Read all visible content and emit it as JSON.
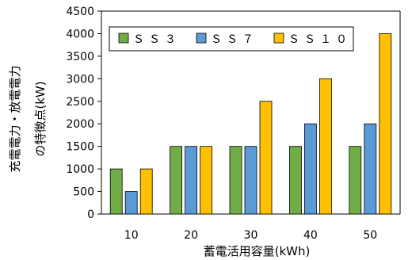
{
  "chart_data": {
    "type": "bar",
    "categories": [
      "10",
      "20",
      "30",
      "40",
      "50"
    ],
    "series": [
      {
        "name": "ＳＳ３",
        "values": [
          1000,
          1500,
          1500,
          1500,
          1500
        ],
        "color": "#70ad47"
      },
      {
        "name": "ＳＳ７",
        "values": [
          500,
          1500,
          1500,
          2000,
          2000
        ],
        "color": "#5b9bd5"
      },
      {
        "name": "ＳＳ１０",
        "values": [
          1000,
          1500,
          2500,
          3000,
          4000
        ],
        "color": "#ffc000"
      }
    ],
    "xlabel": "蓄電活用容量(kWh)",
    "ylabel_line1": "充電電力・放電電力",
    "ylabel_line2": "の特徴点(kW)",
    "ylim": [
      0,
      4500
    ],
    "yticks": [
      0,
      500,
      1000,
      1500,
      2000,
      2500,
      3000,
      3500,
      4000,
      4500
    ],
    "grid": false,
    "legend_position": "top-left"
  }
}
